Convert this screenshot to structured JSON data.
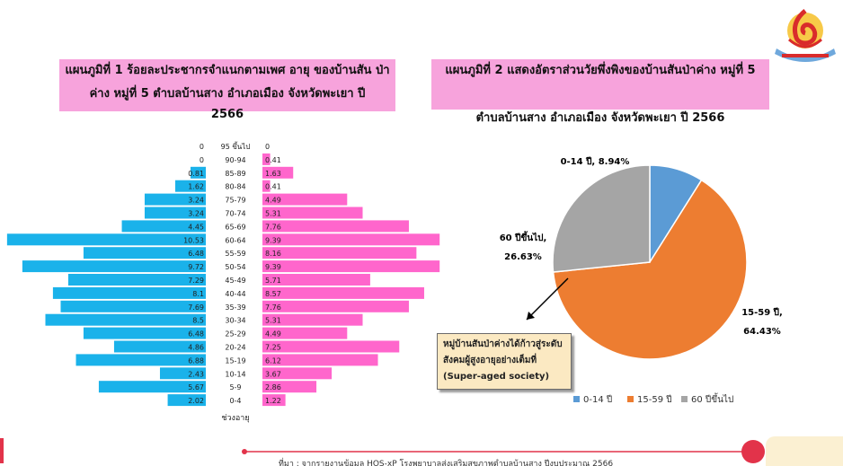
{
  "chart_titles": {
    "left_title": "แผนภูมิที่ 1 ร้อยละประชากรจำแนกตามเพศ อายุ ของบ้านสัน ป่าค่าง หมู่ที่ 5 ตำบลบ้านสาง อำเภอเมือง จังหวัดพะเยา ปี",
    "left_year": "2566",
    "right_title": "แผนภูมิที่ 2 แสดงอัตราส่วนวัยพึ่งพิงของบ้านสันป่าค่าง หมู่ที่ 5",
    "right_subtitle": "ตำบลบ้านสาง อำเภอเมือง จังหวัดพะเยา ปี 2566"
  },
  "callout": "หมู่บ้านสันป่าค่างได้ก้าวสู่ระดับสังคมผู้สูงอายุอย่างเต็มที่ (Super-aged society)",
  "footer": "ที่มา : จากรายงานข้อมูล HOS-xP โรงพยาบาลส่งเสริมสุขภาพตำบลบ้านสาง ปีงบประมาณ 2566",
  "colors": {
    "male": "#1ab2ea",
    "female": "#ff66cc",
    "pie_0_14": "#5b9bd5",
    "pie_15_59": "#ed7d31",
    "pie_60": "#a5a5a5",
    "title_bg": "#f7a3dc"
  },
  "chart_data": [
    {
      "type": "bar",
      "orientation": "horizontal-pyramid",
      "axis_label": "ช่วงอายุ",
      "categories": [
        "95 ขึ้นไป",
        "90-94",
        "85-89",
        "80-84",
        "75-79",
        "70-74",
        "65-69",
        "60-64",
        "55-59",
        "50-54",
        "45-49",
        "40-44",
        "35-39",
        "30-34",
        "25-29",
        "20-24",
        "15-19",
        "10-14",
        "5-9",
        "0-4"
      ],
      "series": [
        {
          "values": [
            0,
            0,
            0.81,
            1.62,
            3.24,
            3.24,
            4.45,
            10.53,
            6.48,
            9.72,
            7.29,
            8.1,
            7.69,
            8.5,
            6.48,
            4.86,
            6.88,
            2.43,
            5.67,
            2.02
          ]
        },
        {
          "values": [
            0,
            0.41,
            1.63,
            0.41,
            4.49,
            5.31,
            7.76,
            9.39,
            8.16,
            9.39,
            5.71,
            8.57,
            7.76,
            5.31,
            4.49,
            7.25,
            6.12,
            3.67,
            2.86,
            1.22
          ]
        }
      ],
      "value_labels": {
        "left": [
          "0",
          "0",
          "0.81",
          "1.62",
          "3.24",
          "3.24",
          "4.45",
          "10.53",
          "6.48",
          "9.72",
          "7.29",
          "8.1",
          "7.69",
          "8.5",
          "6.48",
          "4.86",
          "6.88",
          "2.43",
          "5.67",
          "2.02"
        ],
        "right": [
          "0",
          "0.41",
          "1.63",
          "0.41",
          "4.49",
          "5.31",
          "7.76",
          "9.39",
          "8.16",
          "9.39",
          "5.71",
          "8.57",
          "7.76",
          "5.31",
          "4.49",
          "7.25",
          "6.12",
          "3.67",
          "2.86",
          "1.22"
        ]
      }
    },
    {
      "type": "pie",
      "slices": [
        {
          "name": "0-14 ปี",
          "value": 8.94,
          "label": "0-14 ปี, 8.94%",
          "color": "#5b9bd5"
        },
        {
          "name": "15-59 ปี",
          "value": 64.43,
          "label_line1": "15-59 ปี,",
          "label_line2": "64.43%",
          "color": "#ed7d31"
        },
        {
          "name": "60 ปีขึ้นไป",
          "value": 26.63,
          "label_line1": "60 ปีขึ้นไป,",
          "label_line2": "26.63%",
          "color": "#a5a5a5"
        }
      ],
      "legend": [
        "0-14 ปี",
        "15-59 ปี",
        "60 ปีขึ้นไป"
      ],
      "legend_position": "bottom"
    }
  ]
}
